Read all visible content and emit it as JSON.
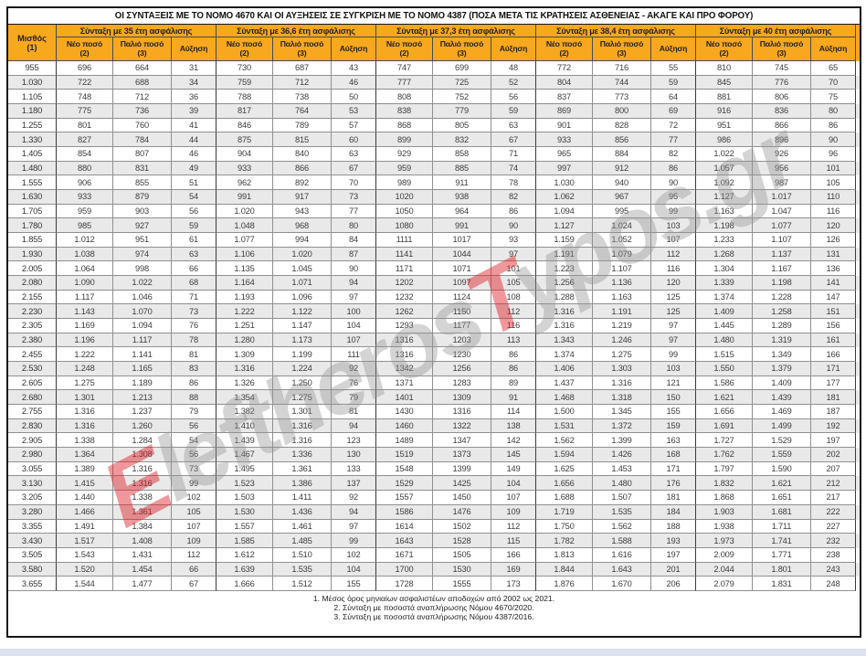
{
  "title": "ΟΙ ΣΥΝΤΑΞΕΙΣ ΜΕ ΤΟ ΝΟΜΟ 4670 ΚΑΙ ΟΙ ΑΥΞΗΣΕΙΣ ΣΕ ΣΥΓΚΡΙΣΗ ΜΕ ΤΟ ΝΟΜΟ 4387 (ΠΟΣΑ ΜΕΤΑ ΤΙΣ ΚΡΑΤΗΣΕΙΣ ΑΣΘΕΝΕΙΑΣ - ΑΚΑΓΕ ΚΑΙ ΠΡΟ ΦΟΡΟΥ)",
  "watermark": {
    "part1_red": "E",
    "part2_gray": "leftheros",
    "part3_red": "T",
    "part4_gray": "ypos.gr"
  },
  "colors": {
    "header_orange": "#f8a81e",
    "row_alt_gray": "#e9e9e9",
    "watermark_red": "#de1c24",
    "outer_border": "#141414",
    "page_strip_blue": "#d9e2ee"
  },
  "table": {
    "salary_label": "Μισθός\n(1)",
    "groups": [
      {
        "label": "Σύνταξη με 35 έτη ασφάλισης"
      },
      {
        "label": "Σύνταξη με 36,6 έτη ασφάλισης"
      },
      {
        "label": "Σύνταξη με 37,3 έτη ασφάλισης"
      },
      {
        "label": "Σύνταξη με 38,4 έτη ασφάλισης"
      },
      {
        "label": "Σύνταξη με 40 έτη ασφάλισης"
      }
    ],
    "subheaders": {
      "new": "Νέο ποσό\n(2)",
      "old": "Παλιό ποσό\n(3)",
      "increase": "Αύξηση"
    },
    "rows": [
      {
        "s": "955",
        "v": [
          "696",
          "664",
          "31",
          "730",
          "687",
          "43",
          "747",
          "699",
          "48",
          "772",
          "716",
          "55",
          "810",
          "745",
          "65"
        ]
      },
      {
        "s": "1.030",
        "v": [
          "722",
          "688",
          "34",
          "759",
          "712",
          "46",
          "777",
          "725",
          "52",
          "804",
          "744",
          "59",
          "845",
          "776",
          "70"
        ]
      },
      {
        "s": "1.105",
        "v": [
          "748",
          "712",
          "36",
          "788",
          "738",
          "50",
          "808",
          "752",
          "56",
          "837",
          "773",
          "64",
          "881",
          "806",
          "75"
        ]
      },
      {
        "s": "1.180",
        "v": [
          "775",
          "736",
          "39",
          "817",
          "764",
          "53",
          "838",
          "779",
          "59",
          "869",
          "800",
          "69",
          "916",
          "836",
          "80"
        ]
      },
      {
        "s": "1.255",
        "v": [
          "801",
          "760",
          "41",
          "846",
          "789",
          "57",
          "868",
          "805",
          "63",
          "901",
          "828",
          "72",
          "951",
          "866",
          "86"
        ]
      },
      {
        "s": "1.330",
        "v": [
          "827",
          "784",
          "44",
          "875",
          "815",
          "60",
          "899",
          "832",
          "67",
          "933",
          "856",
          "77",
          "986",
          "896",
          "90"
        ]
      },
      {
        "s": "1.405",
        "v": [
          "854",
          "807",
          "46",
          "904",
          "840",
          "63",
          "929",
          "858",
          "71",
          "965",
          "884",
          "82",
          "1.022",
          "926",
          "96"
        ]
      },
      {
        "s": "1.480",
        "v": [
          "880",
          "831",
          "49",
          "933",
          "866",
          "67",
          "959",
          "885",
          "74",
          "997",
          "912",
          "86",
          "1.057",
          "956",
          "101"
        ]
      },
      {
        "s": "1.555",
        "v": [
          "906",
          "855",
          "51",
          "962",
          "892",
          "70",
          "989",
          "911",
          "78",
          "1.030",
          "940",
          "90",
          "1.092",
          "987",
          "105"
        ]
      },
      {
        "s": "1.630",
        "v": [
          "933",
          "879",
          "54",
          "991",
          "917",
          "73",
          "1020",
          "938",
          "82",
          "1.062",
          "967",
          "95",
          "1.127",
          "1.017",
          "110"
        ]
      },
      {
        "s": "1.705",
        "v": [
          "959",
          "903",
          "56",
          "1.020",
          "943",
          "77",
          "1050",
          "964",
          "86",
          "1.094",
          "995",
          "99",
          "1.163",
          "1.047",
          "116"
        ]
      },
      {
        "s": "1.780",
        "v": [
          "985",
          "927",
          "59",
          "1.048",
          "968",
          "80",
          "1080",
          "991",
          "90",
          "1.127",
          "1.024",
          "103",
          "1.198",
          "1.077",
          "120"
        ]
      },
      {
        "s": "1.855",
        "v": [
          "1.012",
          "951",
          "61",
          "1.077",
          "994",
          "84",
          "1111",
          "1017",
          "93",
          "1.159",
          "1.052",
          "107",
          "1.233",
          "1.107",
          "126"
        ]
      },
      {
        "s": "1.930",
        "v": [
          "1.038",
          "974",
          "63",
          "1.106",
          "1.020",
          "87",
          "1141",
          "1044",
          "97",
          "1.191",
          "1.079",
          "112",
          "1.268",
          "1.137",
          "131"
        ]
      },
      {
        "s": "2.005",
        "v": [
          "1.064",
          "998",
          "66",
          "1.135",
          "1.045",
          "90",
          "1171",
          "1071",
          "101",
          "1.223",
          "1.107",
          "116",
          "1.304",
          "1.167",
          "136"
        ]
      },
      {
        "s": "2.080",
        "v": [
          "1.090",
          "1.022",
          "68",
          "1.164",
          "1.071",
          "94",
          "1202",
          "1097",
          "105",
          "1.256",
          "1.136",
          "120",
          "1.339",
          "1.198",
          "141"
        ]
      },
      {
        "s": "2.155",
        "v": [
          "1.117",
          "1.046",
          "71",
          "1.193",
          "1.096",
          "97",
          "1232",
          "1124",
          "108",
          "1.288",
          "1.163",
          "125",
          "1.374",
          "1.228",
          "147"
        ]
      },
      {
        "s": "2.230",
        "v": [
          "1.143",
          "1.070",
          "73",
          "1.222",
          "1.122",
          "100",
          "1262",
          "1150",
          "112",
          "1.316",
          "1.191",
          "125",
          "1.409",
          "1.258",
          "151"
        ]
      },
      {
        "s": "2.305",
        "v": [
          "1.169",
          "1.094",
          "76",
          "1.251",
          "1.147",
          "104",
          "1293",
          "1177",
          "116",
          "1.316",
          "1.219",
          "97",
          "1.445",
          "1.289",
          "156"
        ]
      },
      {
        "s": "2.380",
        "v": [
          "1.196",
          "1.117",
          "78",
          "1.280",
          "1.173",
          "107",
          "1316",
          "1203",
          "113",
          "1.343",
          "1.246",
          "97",
          "1.480",
          "1.319",
          "161"
        ]
      },
      {
        "s": "2.455",
        "v": [
          "1.222",
          "1.141",
          "81",
          "1.309",
          "1.199",
          "111",
          "1316",
          "1230",
          "86",
          "1.374",
          "1.275",
          "99",
          "1.515",
          "1.349",
          "166"
        ]
      },
      {
        "s": "2.530",
        "v": [
          "1.248",
          "1.165",
          "83",
          "1.316",
          "1.224",
          "92",
          "1342",
          "1256",
          "86",
          "1.406",
          "1.303",
          "103",
          "1.550",
          "1.379",
          "171"
        ]
      },
      {
        "s": "2.605",
        "v": [
          "1.275",
          "1.189",
          "86",
          "1.326",
          "1.250",
          "76",
          "1371",
          "1283",
          "89",
          "1.437",
          "1.316",
          "121",
          "1.586",
          "1.409",
          "177"
        ]
      },
      {
        "s": "2.680",
        "v": [
          "1.301",
          "1.213",
          "88",
          "1.354",
          "1.275",
          "79",
          "1401",
          "1309",
          "91",
          "1.468",
          "1.318",
          "150",
          "1.621",
          "1.439",
          "181"
        ]
      },
      {
        "s": "2.755",
        "v": [
          "1.316",
          "1.237",
          "79",
          "1.382",
          "1.301",
          "81",
          "1430",
          "1316",
          "114",
          "1.500",
          "1.345",
          "155",
          "1.656",
          "1.469",
          "187"
        ]
      },
      {
        "s": "2.830",
        "v": [
          "1.316",
          "1.260",
          "56",
          "1.410",
          "1.316",
          "94",
          "1460",
          "1322",
          "138",
          "1.531",
          "1.372",
          "159",
          "1.691",
          "1.499",
          "192"
        ]
      },
      {
        "s": "2.905",
        "v": [
          "1.338",
          "1.284",
          "54",
          "1.439",
          "1.316",
          "123",
          "1489",
          "1347",
          "142",
          "1.562",
          "1.399",
          "163",
          "1.727",
          "1.529",
          "197"
        ]
      },
      {
        "s": "2.980",
        "v": [
          "1.364",
          "1.308",
          "56",
          "1.467",
          "1.336",
          "130",
          "1519",
          "1373",
          "145",
          "1.594",
          "1.426",
          "168",
          "1.762",
          "1.559",
          "202"
        ]
      },
      {
        "s": "3.055",
        "v": [
          "1.389",
          "1.316",
          "73",
          "1.495",
          "1.361",
          "133",
          "1548",
          "1399",
          "149",
          "1.625",
          "1.453",
          "171",
          "1.797",
          "1.590",
          "207"
        ]
      },
      {
        "s": "3.130",
        "v": [
          "1.415",
          "1.316",
          "99",
          "1.523",
          "1.386",
          "137",
          "1529",
          "1425",
          "104",
          "1.656",
          "1.480",
          "176",
          "1.832",
          "1.621",
          "212"
        ]
      },
      {
        "s": "3.205",
        "v": [
          "1.440",
          "1.338",
          "102",
          "1.503",
          "1.411",
          "92",
          "1557",
          "1450",
          "107",
          "1.688",
          "1.507",
          "181",
          "1.868",
          "1.651",
          "217"
        ]
      },
      {
        "s": "3.280",
        "v": [
          "1.466",
          "1.361",
          "105",
          "1.530",
          "1.436",
          "94",
          "1586",
          "1476",
          "109",
          "1.719",
          "1.535",
          "184",
          "1.903",
          "1.681",
          "222"
        ]
      },
      {
        "s": "3.355",
        "v": [
          "1.491",
          "1.384",
          "107",
          "1.557",
          "1.461",
          "97",
          "1614",
          "1502",
          "112",
          "1.750",
          "1.562",
          "188",
          "1.938",
          "1.711",
          "227"
        ]
      },
      {
        "s": "3.430",
        "v": [
          "1.517",
          "1.408",
          "109",
          "1.585",
          "1.485",
          "99",
          "1643",
          "1528",
          "115",
          "1.782",
          "1.588",
          "193",
          "1.973",
          "1.741",
          "232"
        ]
      },
      {
        "s": "3.505",
        "v": [
          "1.543",
          "1.431",
          "112",
          "1.612",
          "1.510",
          "102",
          "1671",
          "1505",
          "166",
          "1.813",
          "1.616",
          "197",
          "2.009",
          "1.771",
          "238"
        ]
      },
      {
        "s": "3.580",
        "v": [
          "1.520",
          "1.454",
          "66",
          "1.639",
          "1.535",
          "104",
          "1700",
          "1530",
          "169",
          "1.844",
          "1.643",
          "201",
          "2.044",
          "1.801",
          "243"
        ]
      },
      {
        "s": "3.655",
        "v": [
          "1.544",
          "1.477",
          "67",
          "1.666",
          "1.512",
          "155",
          "1728",
          "1555",
          "173",
          "1.876",
          "1.670",
          "206",
          "2.079",
          "1.831",
          "248"
        ]
      }
    ]
  },
  "notes": [
    "1. Μέσος όρος μηνιαίων ασφαλιστέων αποδοχών από 2002 ως 2021.",
    "2. Σύνταξη με ποσοστά αναπλήρωσης Νόμου 4670/2020.",
    "3. Σύνταξη με ποσοστά αναπλήρωσης Νόμου 4387/2016."
  ]
}
